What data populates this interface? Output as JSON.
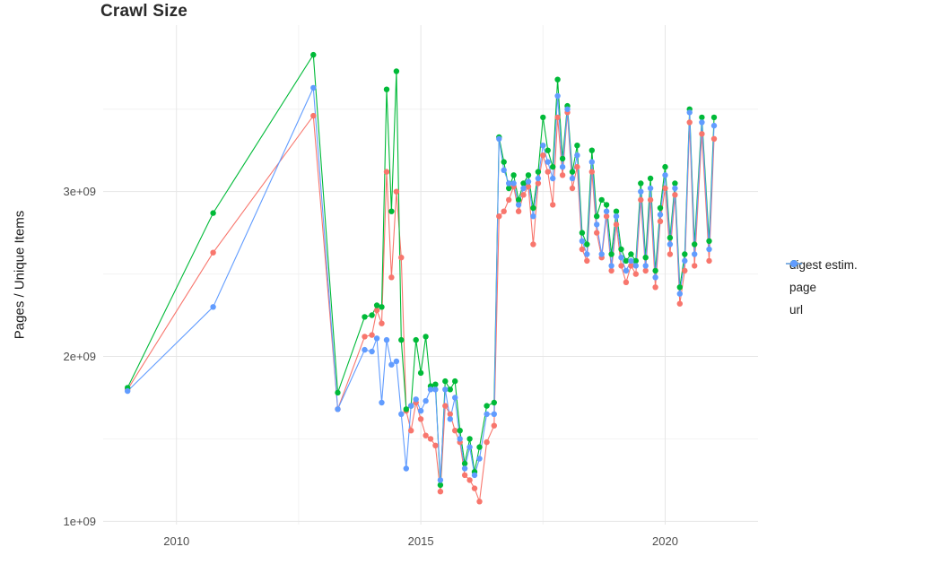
{
  "chart_data": {
    "type": "line",
    "title": "Crawl Size",
    "xlabel": "",
    "ylabel": "Pages / Unique Items",
    "value_unit": "pages / unique items (values x 1e9)",
    "xlim": [
      2008.5,
      2021.9
    ],
    "ylim": [
      0.98,
      4.01
    ],
    "grid": true,
    "legend_position": "right",
    "x_ticks": [
      {
        "value": 2010,
        "label": "2010"
      },
      {
        "value": 2015,
        "label": "2015"
      },
      {
        "value": 2020,
        "label": "2020"
      }
    ],
    "x_minor_ticks": [
      2012.5,
      2017.5
    ],
    "y_ticks": [
      {
        "value": 1,
        "label": "1e+09"
      },
      {
        "value": 2,
        "label": "2e+09"
      },
      {
        "value": 3,
        "label": "3e+09"
      }
    ],
    "y_minor_ticks": [
      1.5,
      2.5,
      3.5
    ],
    "x": [
      2009.0,
      2010.75,
      2012.8,
      2013.3,
      2013.85,
      2014.0,
      2014.1,
      2014.2,
      2014.3,
      2014.4,
      2014.5,
      2014.6,
      2014.7,
      2014.8,
      2014.9,
      2015.0,
      2015.1,
      2015.2,
      2015.3,
      2015.4,
      2015.5,
      2015.6,
      2015.7,
      2015.8,
      2015.9,
      2016.0,
      2016.1,
      2016.2,
      2016.35,
      2016.5,
      2016.6,
      2016.7,
      2016.8,
      2016.9,
      2017.0,
      2017.1,
      2017.2,
      2017.3,
      2017.4,
      2017.5,
      2017.6,
      2017.7,
      2017.8,
      2017.9,
      2018.0,
      2018.1,
      2018.2,
      2018.3,
      2018.4,
      2018.5,
      2018.6,
      2018.7,
      2018.8,
      2018.9,
      2019.0,
      2019.1,
      2019.2,
      2019.3,
      2019.4,
      2019.5,
      2019.6,
      2019.7,
      2019.8,
      2019.9,
      2020.0,
      2020.1,
      2020.2,
      2020.3,
      2020.4,
      2020.5,
      2020.6,
      2020.75,
      2020.9,
      2021.0
    ],
    "series": [
      {
        "name": "digest estim.",
        "color": "#F8766D",
        "values": [
          1.8,
          2.63,
          3.46,
          1.68,
          2.12,
          2.13,
          2.28,
          2.2,
          3.12,
          2.48,
          3.0,
          2.6,
          1.67,
          1.55,
          1.72,
          1.62,
          1.52,
          1.5,
          1.46,
          1.18,
          1.7,
          1.65,
          1.55,
          1.48,
          1.28,
          1.25,
          1.2,
          1.12,
          1.48,
          1.58,
          2.85,
          2.88,
          2.95,
          3.03,
          2.88,
          2.98,
          3.03,
          2.68,
          3.05,
          3.22,
          3.12,
          2.92,
          3.45,
          3.1,
          3.48,
          3.02,
          3.15,
          2.65,
          2.58,
          3.12,
          2.75,
          2.6,
          2.85,
          2.52,
          2.8,
          2.55,
          2.45,
          2.55,
          2.5,
          2.95,
          2.52,
          2.95,
          2.42,
          2.82,
          3.02,
          2.62,
          2.98,
          2.32,
          2.52,
          3.42,
          2.55,
          3.35,
          2.58,
          3.32
        ]
      },
      {
        "name": "page",
        "color": "#00BA38",
        "values": [
          1.81,
          2.87,
          3.83,
          1.78,
          2.24,
          2.25,
          2.31,
          2.3,
          3.62,
          2.88,
          3.73,
          2.1,
          1.68,
          1.7,
          2.1,
          1.9,
          2.12,
          1.82,
          1.83,
          1.22,
          1.85,
          1.8,
          1.85,
          1.55,
          1.35,
          1.5,
          1.3,
          1.45,
          1.7,
          1.72,
          3.33,
          3.18,
          3.02,
          3.1,
          2.95,
          3.05,
          3.1,
          2.9,
          3.12,
          3.45,
          3.25,
          3.15,
          3.68,
          3.2,
          3.52,
          3.12,
          3.28,
          2.75,
          2.68,
          3.25,
          2.85,
          2.95,
          2.92,
          2.62,
          2.88,
          2.65,
          2.58,
          2.62,
          2.58,
          3.05,
          2.6,
          3.08,
          2.52,
          2.9,
          3.15,
          2.72,
          3.05,
          2.42,
          2.62,
          3.5,
          2.68,
          3.45,
          2.7,
          3.45
        ]
      },
      {
        "name": "url",
        "color": "#619CFF",
        "values": [
          1.79,
          2.3,
          3.63,
          1.68,
          2.04,
          2.03,
          2.11,
          1.72,
          2.1,
          1.95,
          1.97,
          1.65,
          1.32,
          1.7,
          1.74,
          1.67,
          1.73,
          1.8,
          1.8,
          1.25,
          1.8,
          1.62,
          1.75,
          1.5,
          1.32,
          1.45,
          1.28,
          1.38,
          1.65,
          1.65,
          3.32,
          3.13,
          3.05,
          3.05,
          2.92,
          3.02,
          3.06,
          2.85,
          3.08,
          3.28,
          3.18,
          3.08,
          3.58,
          3.15,
          3.5,
          3.08,
          3.22,
          2.7,
          2.62,
          3.18,
          2.8,
          2.62,
          2.88,
          2.55,
          2.85,
          2.6,
          2.52,
          2.58,
          2.55,
          3.0,
          2.55,
          3.02,
          2.48,
          2.86,
          3.1,
          2.68,
          3.02,
          2.38,
          2.58,
          3.48,
          2.62,
          3.42,
          2.65,
          3.4
        ]
      }
    ]
  }
}
